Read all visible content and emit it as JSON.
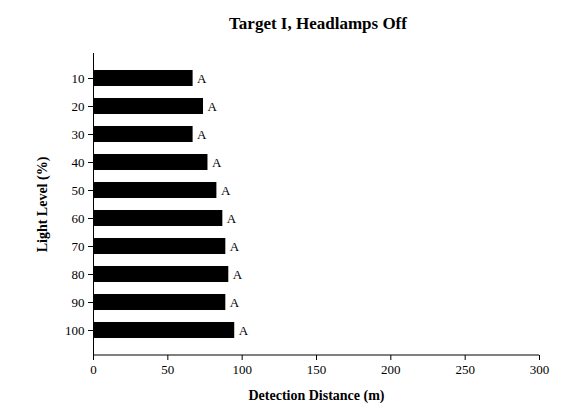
{
  "chart_data": {
    "type": "bar",
    "orientation": "horizontal",
    "title": "Target I, Headlamps Off",
    "x_label": "Detection Distance (m)",
    "y_label": "Light Level (%)",
    "categories": [
      "10",
      "20",
      "30",
      "40",
      "50",
      "60",
      "70",
      "80",
      "90",
      "100"
    ],
    "values": [
      67,
      74,
      67,
      77,
      83,
      87,
      89,
      91,
      89,
      95
    ],
    "annotations": [
      "A",
      "A",
      "A",
      "A",
      "A",
      "A",
      "A",
      "A",
      "A",
      "A"
    ],
    "color": "#000000",
    "xlim": [
      0,
      300
    ],
    "xticks": [
      0,
      50,
      100,
      150,
      200,
      250,
      300
    ],
    "grid": false
  }
}
